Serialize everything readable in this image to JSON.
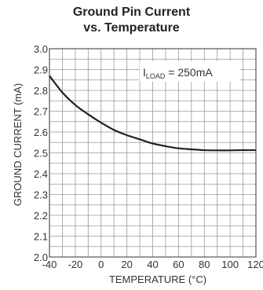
{
  "chart_data": {
    "type": "line",
    "title_line1": "Ground Pin Current",
    "title_line2": "vs. Temperature",
    "xlabel": "TEMPERATURE (°C)",
    "ylabel": "GROUND CURRENT (mA)",
    "xlim": [
      -40,
      120
    ],
    "ylim": [
      2.0,
      3.0
    ],
    "x_ticks": [
      -40,
      -20,
      0,
      20,
      40,
      60,
      80,
      100,
      120
    ],
    "y_ticks": [
      "2.0",
      "2.1",
      "2.2",
      "2.3",
      "2.4",
      "2.5",
      "2.6",
      "2.7",
      "2.8",
      "2.9",
      "3.0"
    ],
    "grid": true,
    "annotation": {
      "prefix": "I",
      "subscript": "LOAD",
      "suffix": " = 250mA"
    },
    "series": [
      {
        "x": [
          -40,
          -30,
          -20,
          -10,
          0,
          10,
          20,
          30,
          40,
          50,
          60,
          70,
          80,
          90,
          100,
          110,
          120
        ],
        "y": [
          2.87,
          2.79,
          2.73,
          2.685,
          2.645,
          2.61,
          2.585,
          2.565,
          2.545,
          2.532,
          2.522,
          2.517,
          2.513,
          2.512,
          2.512,
          2.513,
          2.513
        ]
      }
    ]
  }
}
